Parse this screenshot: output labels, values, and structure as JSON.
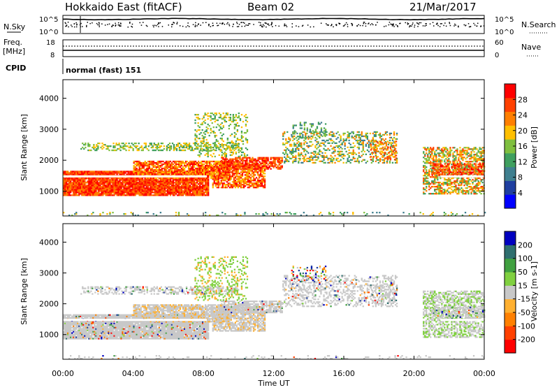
{
  "header": {
    "title": "Hokkaido East (fitACF)",
    "beam": "Beam 02",
    "date": "21/Mar/2017"
  },
  "panels": {
    "nsky": {
      "label": "N.Sky",
      "tick_top": "10^5",
      "tick_bottom": "10^0"
    },
    "nsearch": {
      "label": "N.Search",
      "tick_top": "10^5",
      "tick_bottom": "10^0"
    },
    "freq": {
      "label_line1": "Freq.",
      "label_line2": "[MHz]",
      "tick_top": "18",
      "tick_bottom": "8"
    },
    "nave": {
      "label": "Nave",
      "tick_top": "60",
      "tick_bottom": "0"
    },
    "cpid": {
      "label": "CPID",
      "value": "normal (fast) 151"
    }
  },
  "colors": {
    "power": [
      "#0000ff",
      "#1f3fa0",
      "#3f7f8f",
      "#3f9f5f",
      "#7fbf3f",
      "#ffbf00",
      "#ff7f00",
      "#ff4000",
      "#ff0000"
    ],
    "velocity": [
      "#ff0000",
      "#ff4000",
      "#ff8000",
      "#ffb030",
      "#c8c8c8",
      "#c8c8c8",
      "#80d040",
      "#40a040",
      "#2f6f6f",
      "#1f3fa0",
      "#0000c0"
    ]
  },
  "chart_data": [
    {
      "type": "heatmap",
      "name": "Power",
      "ylabel": "Slant Range [km]",
      "y_ticks": [
        "1000",
        "2000",
        "3000",
        "4000"
      ],
      "ylim": [
        200,
        4600
      ],
      "colorbar_label": "Power [dB]",
      "colorbar_ticks": [
        "4",
        "8",
        "12",
        "16",
        "20",
        "24",
        "28"
      ],
      "colorbar_range": [
        0,
        32
      ]
    },
    {
      "type": "heatmap",
      "name": "Velocity",
      "ylabel": "Slant Range [km]",
      "y_ticks": [
        "1000",
        "2000",
        "3000",
        "4000"
      ],
      "ylim": [
        200,
        4600
      ],
      "colorbar_label": "Velocity [m s-1]",
      "colorbar_ticks": [
        "-200",
        "-100",
        "-50",
        "-15",
        "15",
        "50",
        "100",
        "200"
      ],
      "xlabel": "Time UT",
      "x_ticks": [
        "00:00",
        "04:00",
        "08:00",
        "12:00",
        "16:00",
        "20:00",
        "00:00"
      ],
      "xlim_hours": [
        0,
        24
      ]
    }
  ]
}
